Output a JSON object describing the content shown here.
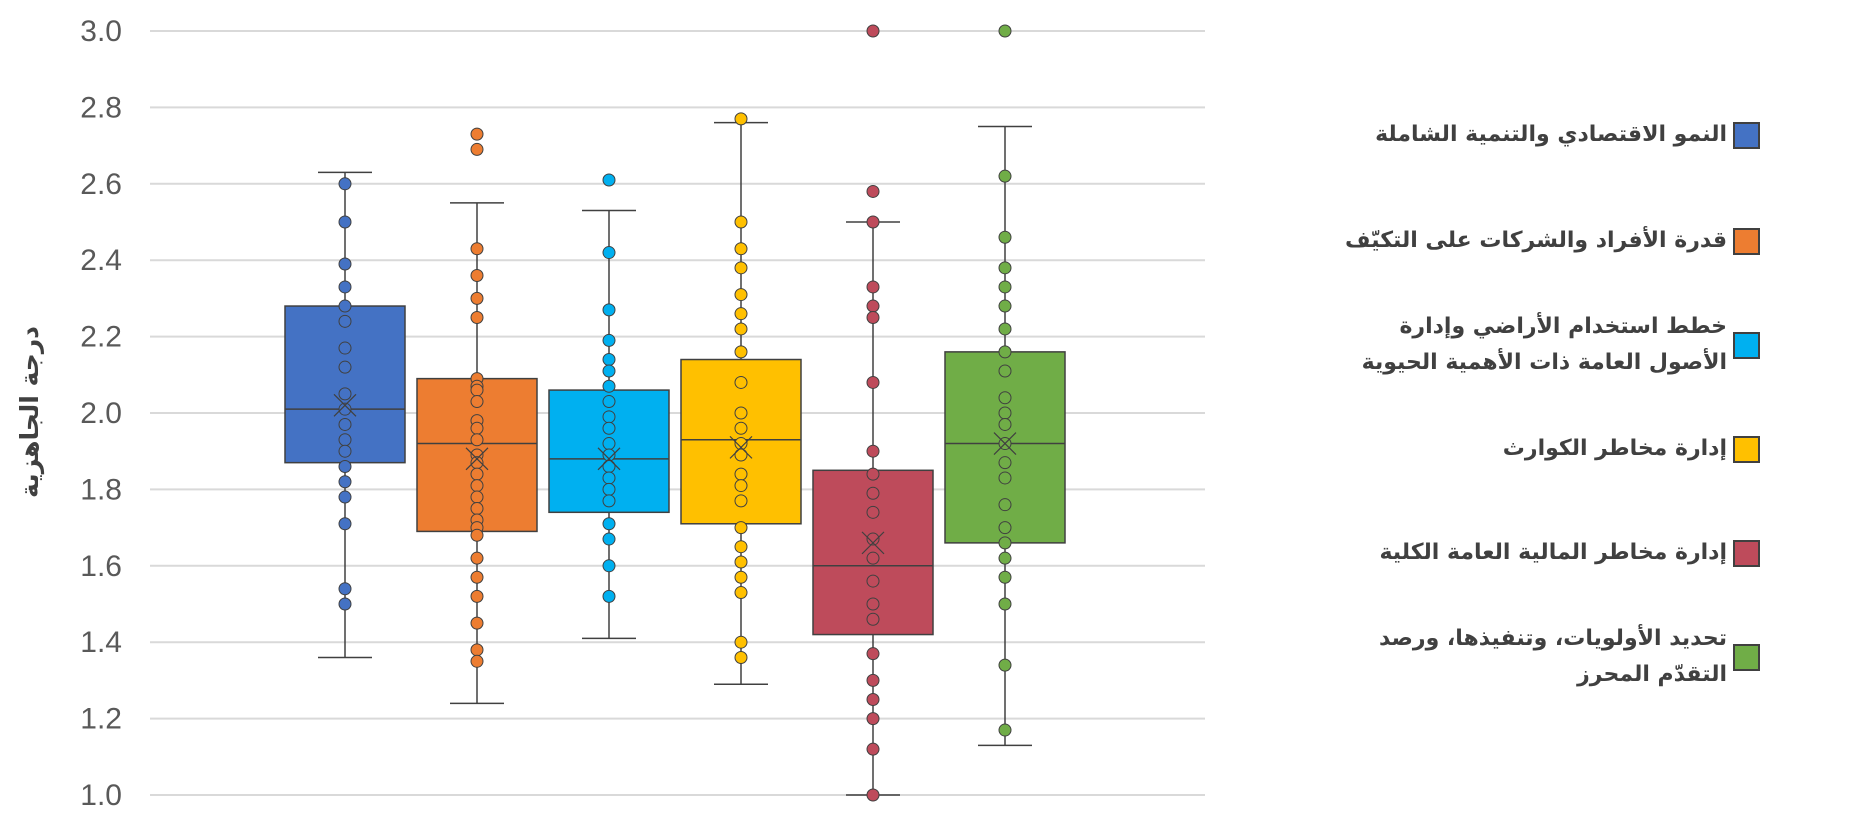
{
  "chart_data": {
    "type": "box",
    "ylabel": "درجة الجاهزية",
    "ylim": [
      1.0,
      3.0
    ],
    "yticks": [
      "1.0",
      "1.2",
      "1.4",
      "1.6",
      "1.8",
      "2.0",
      "2.2",
      "2.4",
      "2.6",
      "2.8",
      "3.0"
    ],
    "grid": true,
    "legend_position": "right",
    "series": [
      {
        "name": "النمو الاقتصادي والتنمية الشاملة",
        "color": "#4472C4",
        "min": 1.36,
        "q1": 1.87,
        "median": 2.01,
        "q3": 2.28,
        "max": 2.63,
        "mean": 2.02,
        "points": [
          2.6,
          2.5,
          2.39,
          2.33,
          2.28,
          2.24,
          2.17,
          2.12,
          2.05,
          2.01,
          1.97,
          1.93,
          1.9,
          1.86,
          1.82,
          1.78,
          1.71,
          1.54,
          1.5
        ],
        "hollow_points": false
      },
      {
        "name": "قدرة الأفراد والشركات على التكيّف",
        "color": "#ED7D31",
        "min": 1.24,
        "q1": 1.69,
        "median": 1.92,
        "q3": 2.09,
        "max": 2.55,
        "mean": 1.88,
        "points": [
          2.73,
          2.69,
          2.43,
          2.36,
          2.3,
          2.25,
          2.09,
          2.07,
          2.06,
          2.03,
          1.98,
          1.96,
          1.93,
          1.89,
          1.87,
          1.84,
          1.81,
          1.78,
          1.75,
          1.72,
          1.7,
          1.68,
          1.62,
          1.57,
          1.52,
          1.45,
          1.38,
          1.35
        ],
        "hollow_points": false
      },
      {
        "name": "خطط استخدام الأراضي وإدارة الأصول العامة ذات الأهمية الحيوية",
        "color": "#00B0F0",
        "min": 1.41,
        "q1": 1.74,
        "median": 1.88,
        "q3": 2.06,
        "max": 2.53,
        "mean": 1.88,
        "points": [
          2.61,
          2.42,
          2.27,
          2.19,
          2.14,
          2.11,
          2.07,
          2.03,
          1.99,
          1.96,
          1.92,
          1.89,
          1.86,
          1.83,
          1.8,
          1.77,
          1.71,
          1.67,
          1.6,
          1.52
        ],
        "hollow_points": false
      },
      {
        "name": "إدارة مخاطر الكوارث",
        "color": "#FFC000",
        "min": 1.29,
        "q1": 1.71,
        "median": 1.93,
        "q3": 2.14,
        "max": 2.76,
        "mean": 1.91,
        "points": [
          2.77,
          2.5,
          2.43,
          2.38,
          2.31,
          2.26,
          2.22,
          2.16,
          2.08,
          2.0,
          1.96,
          1.92,
          1.89,
          1.84,
          1.81,
          1.77,
          1.7,
          1.65,
          1.61,
          1.57,
          1.53,
          1.4,
          1.36
        ],
        "hollow_points": false
      },
      {
        "name": "إدارة مخاطر المالية العامة الكلية",
        "color": "#BE4B5B",
        "min": 1.0,
        "q1": 1.42,
        "median": 1.6,
        "q3": 1.85,
        "max": 2.5,
        "mean": 1.66,
        "points": [
          3.0,
          2.58,
          2.5,
          2.33,
          2.28,
          2.25,
          2.08,
          1.9,
          1.84,
          1.79,
          1.74,
          1.67,
          1.62,
          1.56,
          1.5,
          1.46,
          1.37,
          1.3,
          1.25,
          1.2,
          1.12,
          1.0
        ],
        "hollow_points": false
      },
      {
        "name": "تحديد الأولويات، وتنفيذها، ورصد التقدّم المحرز",
        "color": "#70AD47",
        "min": 1.13,
        "q1": 1.66,
        "median": 1.92,
        "q3": 2.16,
        "max": 2.75,
        "mean": 1.92,
        "points": [
          3.0,
          2.62,
          2.46,
          2.38,
          2.33,
          2.28,
          2.22,
          2.16,
          2.11,
          2.04,
          2.0,
          1.97,
          1.92,
          1.87,
          1.83,
          1.76,
          1.7,
          1.66,
          1.62,
          1.57,
          1.5,
          1.34,
          1.17
        ],
        "hollow_points": false
      }
    ]
  }
}
